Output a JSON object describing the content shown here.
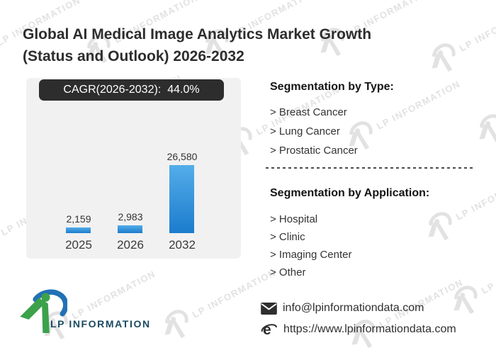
{
  "title": {
    "line1": "Global AI Medical Image Analytics Market Growth",
    "line2": "(Status and Outlook) 2026-2032"
  },
  "chart_data": {
    "type": "bar",
    "title": "CAGR(2026-2032): 44.0%",
    "cagr_label": "CAGR(2026-2032):",
    "cagr_value": "44.0%",
    "categories": [
      "2025",
      "2026",
      "2032"
    ],
    "values": [
      2159,
      2983,
      26580
    ],
    "value_labels": [
      "2,159",
      "2,983",
      "26,580"
    ],
    "xlabel": "",
    "ylabel": "",
    "ylim": [
      0,
      26580
    ],
    "grid": "off",
    "bar_color_top": "#54ade9",
    "bar_color_bottom": "#1b7ccd",
    "panel_bg": "#f1f1f1",
    "banner_bg": "#2d2d2d"
  },
  "segmentation_type": {
    "heading": "Segmentation by Type:",
    "items": [
      "> Breast Cancer",
      "> Lung Cancer",
      "> Prostatic Cancer"
    ]
  },
  "segmentation_application": {
    "heading": "Segmentation by Application:",
    "items": [
      "> Hospital",
      "> Clinic",
      "> Imaging Center",
      "> Other"
    ]
  },
  "footer": {
    "logo_text": "LP INFORMATION",
    "email": "info@lpinformationdata.com",
    "website": "https://www.lpinformationdata.com"
  },
  "watermark": {
    "text": "LP INFORMATION"
  },
  "brand_colors": {
    "green": "#3ba24b",
    "blue": "#2271b4",
    "logo_text": "#1a4a60"
  }
}
